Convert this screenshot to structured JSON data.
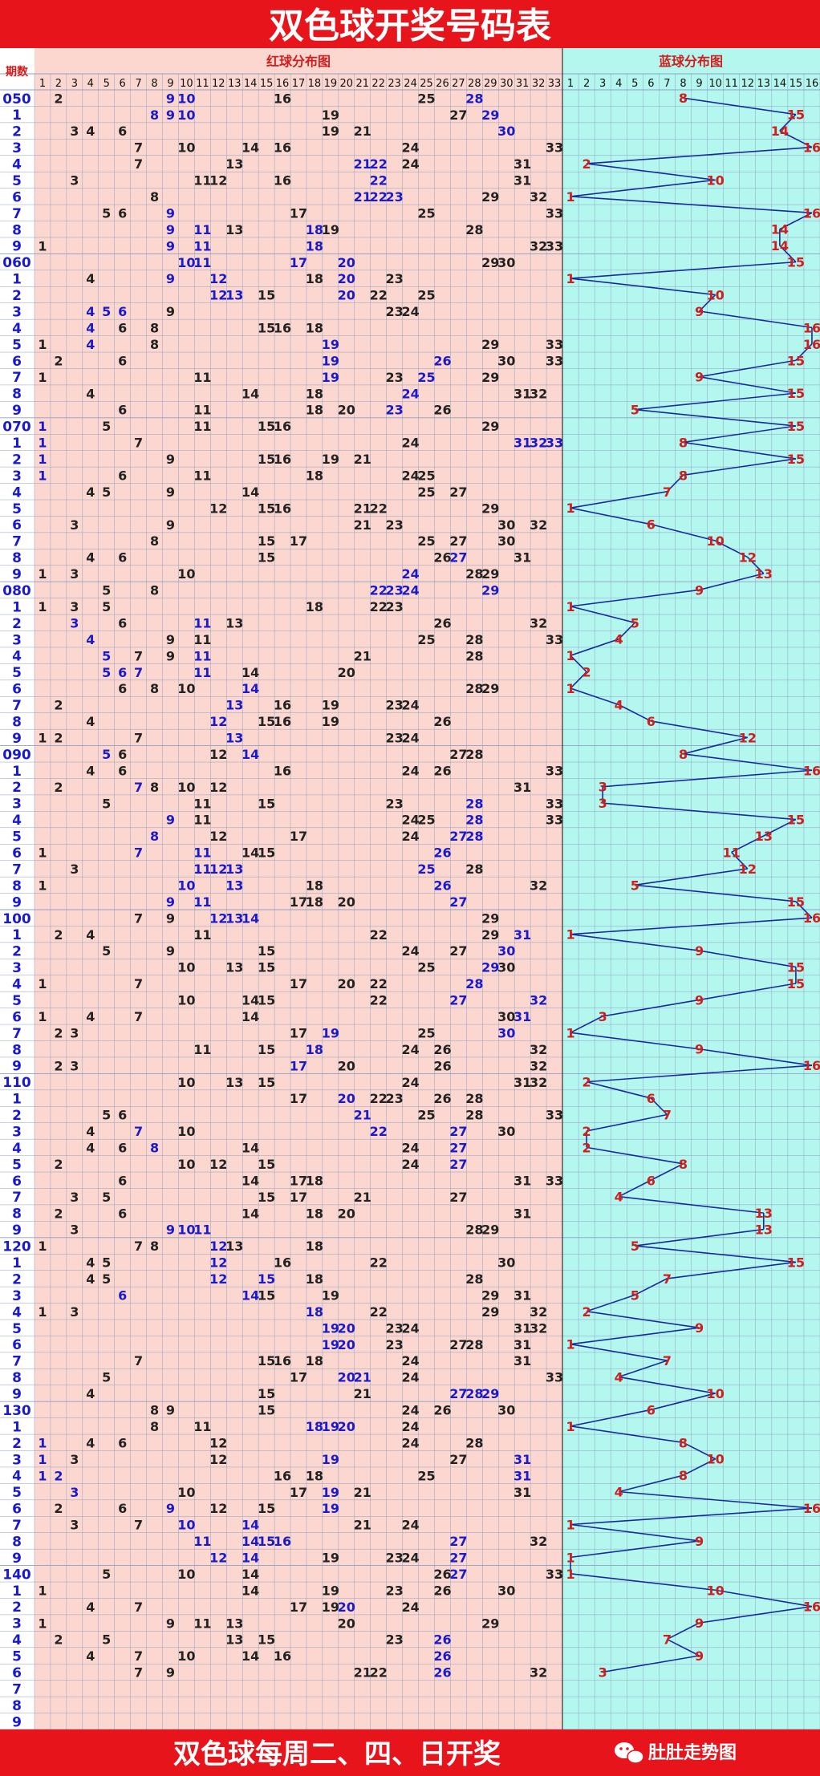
{
  "header": {
    "title": "双色球开奖号码表"
  },
  "labels": {
    "period": "期数",
    "red_section": "红球分布图",
    "blue_section": "蓝球分布图"
  },
  "footer": {
    "text": "双色球每周二、四、日开奖",
    "brand": "肚肚走势图"
  },
  "colors": {
    "title_bar": "#e8141c",
    "red_area": "#fcd7cf",
    "blue_area": "#b3f7ef",
    "grid": "#8fa0c4",
    "blue_line": "#1a2a9a",
    "number_dark": "#222222",
    "number_blue": "#1a1acc",
    "number_red": "#d21d1d"
  },
  "chart_data": {
    "type": "table",
    "red_columns": [
      "1",
      "2",
      "3",
      "4",
      "5",
      "6",
      "7",
      "8",
      "9",
      "10",
      "11",
      "12",
      "13",
      "14",
      "15",
      "16",
      "17",
      "18",
      "19",
      "20",
      "21",
      "22",
      "23",
      "24",
      "25",
      "26",
      "27",
      "28",
      "29",
      "30",
      "31",
      "32",
      "33"
    ],
    "blue_columns": [
      "1",
      "2",
      "3",
      "4",
      "5",
      "6",
      "7",
      "8",
      "9",
      "10",
      "11",
      "12",
      "13",
      "14",
      "15",
      "16"
    ],
    "period_labels": [
      "050",
      "1",
      "2",
      "3",
      "4",
      "5",
      "6",
      "7",
      "8",
      "9",
      "060",
      "1",
      "2",
      "3",
      "4",
      "5",
      "6",
      "7",
      "8",
      "9",
      "070",
      "1",
      "2",
      "3",
      "4",
      "5",
      "6",
      "7",
      "8",
      "9",
      "080",
      "1",
      "2",
      "3",
      "4",
      "5",
      "6",
      "7",
      "8",
      "9",
      "090",
      "1",
      "2",
      "3",
      "4",
      "5",
      "6",
      "7",
      "8",
      "9",
      "100",
      "1",
      "2",
      "3",
      "4",
      "5",
      "6",
      "7",
      "8",
      "9",
      "110",
      "1",
      "2",
      "3",
      "4",
      "5",
      "6",
      "7",
      "8",
      "9",
      "120",
      "1",
      "2",
      "3",
      "4",
      "5",
      "6",
      "7",
      "8",
      "9",
      "130",
      "1",
      "2",
      "3",
      "4",
      "5",
      "6",
      "7",
      "8",
      "9",
      "140",
      "1",
      "2",
      "3",
      "4",
      "5",
      "6",
      "7",
      "8",
      "9"
    ],
    "draws": [
      {
        "red": [
          2,
          9,
          10,
          16,
          25,
          28
        ],
        "blue": 8
      },
      {
        "red": [
          8,
          9,
          10,
          19,
          27,
          29
        ],
        "blue": 15
      },
      {
        "red": [
          3,
          4,
          6,
          19,
          21,
          30
        ],
        "blue": 14
      },
      {
        "red": [
          7,
          10,
          14,
          16,
          24,
          33
        ],
        "blue": 16
      },
      {
        "red": [
          7,
          13,
          21,
          22,
          24,
          31
        ],
        "blue": 2
      },
      {
        "red": [
          3,
          11,
          12,
          16,
          22,
          31
        ],
        "blue": 10
      },
      {
        "red": [
          8,
          21,
          22,
          23,
          29,
          32
        ],
        "blue": 1
      },
      {
        "red": [
          5,
          6,
          9,
          17,
          25,
          33
        ],
        "blue": 16
      },
      {
        "red": [
          9,
          11,
          13,
          18,
          19,
          28
        ],
        "blue": 14
      },
      {
        "red": [
          1,
          9,
          11,
          18,
          32,
          33
        ],
        "blue": 14
      },
      {
        "red": [
          10,
          11,
          17,
          20,
          29,
          30
        ],
        "blue": 15
      },
      {
        "red": [
          4,
          9,
          12,
          18,
          20,
          23
        ],
        "blue": 1
      },
      {
        "red": [
          12,
          13,
          15,
          20,
          22,
          25
        ],
        "blue": 10
      },
      {
        "red": [
          4,
          5,
          6,
          9,
          23,
          24
        ],
        "blue": 9
      },
      {
        "red": [
          4,
          6,
          8,
          15,
          16,
          18
        ],
        "blue": 16
      },
      {
        "red": [
          1,
          4,
          8,
          19,
          29,
          33
        ],
        "blue": 16
      },
      {
        "red": [
          2,
          6,
          19,
          26,
          30,
          33
        ],
        "blue": 15
      },
      {
        "red": [
          1,
          11,
          19,
          23,
          25,
          29
        ],
        "blue": 9
      },
      {
        "red": [
          4,
          14,
          18,
          24,
          31,
          32
        ],
        "blue": 15
      },
      {
        "red": [
          6,
          11,
          18,
          20,
          23,
          26
        ],
        "blue": 5
      },
      {
        "red": [
          1,
          5,
          11,
          15,
          16,
          29
        ],
        "blue": 15
      },
      {
        "red": [
          1,
          7,
          24,
          31,
          32,
          33
        ],
        "blue": 8
      },
      {
        "red": [
          1,
          9,
          15,
          16,
          19,
          21
        ],
        "blue": 15
      },
      {
        "red": [
          1,
          6,
          11,
          18,
          24,
          25
        ],
        "blue": 8
      },
      {
        "red": [
          4,
          5,
          9,
          14,
          25,
          27
        ],
        "blue": 7
      },
      {
        "red": [
          12,
          15,
          16,
          21,
          22,
          29
        ],
        "blue": 1
      },
      {
        "red": [
          3,
          9,
          21,
          23,
          30,
          32
        ],
        "blue": 6
      },
      {
        "red": [
          8,
          15,
          17,
          25,
          27,
          30
        ],
        "blue": 10
      },
      {
        "red": [
          4,
          6,
          15,
          26,
          27,
          31
        ],
        "blue": 12
      },
      {
        "red": [
          1,
          3,
          10,
          24,
          28,
          29
        ],
        "blue": 13
      },
      {
        "red": [
          5,
          8,
          22,
          23,
          24,
          29
        ],
        "blue": 9
      },
      {
        "red": [
          1,
          3,
          5,
          18,
          22,
          23
        ],
        "blue": 1
      },
      {
        "red": [
          3,
          6,
          11,
          13,
          26,
          32
        ],
        "blue": 5
      },
      {
        "red": [
          4,
          9,
          11,
          25,
          28,
          33
        ],
        "blue": 4
      },
      {
        "red": [
          5,
          7,
          9,
          11,
          21,
          28
        ],
        "blue": 1
      },
      {
        "red": [
          5,
          6,
          7,
          11,
          14,
          20
        ],
        "blue": 2
      },
      {
        "red": [
          6,
          8,
          10,
          14,
          28,
          29
        ],
        "blue": 1
      },
      {
        "red": [
          2,
          13,
          16,
          19,
          23,
          24
        ],
        "blue": 4
      },
      {
        "red": [
          4,
          12,
          15,
          16,
          19,
          26
        ],
        "blue": 6
      },
      {
        "red": [
          1,
          2,
          7,
          13,
          23,
          24
        ],
        "blue": 12
      },
      {
        "red": [
          5,
          6,
          12,
          14,
          27,
          28
        ],
        "blue": 8
      },
      {
        "red": [
          4,
          6,
          16,
          24,
          26,
          33
        ],
        "blue": 16
      },
      {
        "red": [
          2,
          7,
          8,
          10,
          12,
          31
        ],
        "blue": 3
      },
      {
        "red": [
          5,
          11,
          15,
          23,
          28,
          33
        ],
        "blue": 3
      },
      {
        "red": [
          9,
          11,
          24,
          25,
          28,
          33
        ],
        "blue": 15
      },
      {
        "red": [
          8,
          12,
          17,
          24,
          27,
          28
        ],
        "blue": 13
      },
      {
        "red": [
          1,
          7,
          11,
          14,
          15,
          26
        ],
        "blue": 11
      },
      {
        "red": [
          3,
          11,
          12,
          13,
          25,
          28
        ],
        "blue": 12
      },
      {
        "red": [
          1,
          10,
          13,
          18,
          26,
          32
        ],
        "blue": 5
      },
      {
        "red": [
          9,
          11,
          17,
          18,
          20,
          27
        ],
        "blue": 15
      },
      {
        "red": [
          7,
          9,
          12,
          13,
          14,
          29
        ],
        "blue": 16
      },
      {
        "red": [
          2,
          4,
          11,
          22,
          29,
          31
        ],
        "blue": 1
      },
      {
        "red": [
          5,
          9,
          15,
          24,
          27,
          30
        ],
        "blue": 9
      },
      {
        "red": [
          10,
          13,
          15,
          25,
          29,
          30
        ],
        "blue": 15
      },
      {
        "red": [
          1,
          7,
          17,
          20,
          22,
          28
        ],
        "blue": 15
      },
      {
        "red": [
          10,
          14,
          15,
          22,
          27,
          32
        ],
        "blue": 9
      },
      {
        "red": [
          1,
          4,
          7,
          14,
          30,
          31
        ],
        "blue": 3
      },
      {
        "red": [
          2,
          3,
          17,
          19,
          25,
          30
        ],
        "blue": 1
      },
      {
        "red": [
          11,
          15,
          18,
          24,
          26,
          32
        ],
        "blue": 9
      },
      {
        "red": [
          2,
          3,
          17,
          20,
          26,
          32
        ],
        "blue": 16
      },
      {
        "red": [
          10,
          13,
          15,
          24,
          31,
          32
        ],
        "blue": 2
      },
      {
        "red": [
          17,
          20,
          22,
          23,
          26,
          28
        ],
        "blue": 6
      },
      {
        "red": [
          5,
          6,
          21,
          25,
          28,
          33
        ],
        "blue": 7
      },
      {
        "red": [
          4,
          7,
          10,
          22,
          27,
          30
        ],
        "blue": 2
      },
      {
        "red": [
          4,
          6,
          8,
          14,
          24,
          27
        ],
        "blue": 2
      },
      {
        "red": [
          2,
          10,
          12,
          15,
          24,
          27
        ],
        "blue": 8
      },
      {
        "red": [
          6,
          14,
          17,
          18,
          31,
          33
        ],
        "blue": 6
      },
      {
        "red": [
          3,
          5,
          15,
          17,
          21,
          27
        ],
        "blue": 4
      },
      {
        "red": [
          2,
          6,
          14,
          18,
          20,
          31
        ],
        "blue": 13
      },
      {
        "red": [
          3,
          9,
          10,
          11,
          28,
          29
        ],
        "blue": 13
      },
      {
        "red": [
          1,
          7,
          8,
          12,
          13,
          18
        ],
        "blue": 5
      },
      {
        "red": [
          4,
          5,
          12,
          16,
          22,
          30
        ],
        "blue": 15
      },
      {
        "red": [
          4,
          5,
          12,
          15,
          18,
          28
        ],
        "blue": 7
      },
      {
        "red": [
          6,
          14,
          15,
          19,
          29,
          31
        ],
        "blue": 5
      },
      {
        "red": [
          1,
          3,
          18,
          22,
          29,
          32
        ],
        "blue": 2
      },
      {
        "red": [
          19,
          20,
          23,
          24,
          31,
          32
        ],
        "blue": 9
      },
      {
        "red": [
          19,
          20,
          23,
          27,
          28,
          31
        ],
        "blue": 1
      },
      {
        "red": [
          7,
          15,
          16,
          18,
          24,
          31
        ],
        "blue": 7
      },
      {
        "red": [
          5,
          17,
          20,
          21,
          24,
          33
        ],
        "blue": 4
      },
      {
        "red": [
          4,
          15,
          21,
          27,
          28,
          29
        ],
        "blue": 10
      },
      {
        "red": [
          8,
          9,
          15,
          24,
          26,
          30
        ],
        "blue": 6
      },
      {
        "red": [
          8,
          11,
          18,
          19,
          20,
          24
        ],
        "blue": 1
      },
      {
        "red": [
          1,
          4,
          6,
          12,
          24,
          28
        ],
        "blue": 8
      },
      {
        "red": [
          1,
          3,
          12,
          19,
          27,
          31
        ],
        "blue": 10
      },
      {
        "red": [
          1,
          2,
          16,
          18,
          25,
          31
        ],
        "blue": 8
      },
      {
        "red": [
          3,
          10,
          17,
          19,
          21,
          31
        ],
        "blue": 4
      },
      {
        "red": [
          2,
          6,
          9,
          12,
          15,
          19
        ],
        "blue": 16
      },
      {
        "red": [
          3,
          7,
          10,
          14,
          21,
          24
        ],
        "blue": 1
      },
      {
        "red": [
          11,
          14,
          15,
          16,
          27,
          32
        ],
        "blue": 9
      },
      {
        "red": [
          12,
          14,
          19,
          23,
          24,
          27
        ],
        "blue": 1
      },
      {
        "red": [
          5,
          10,
          14,
          26,
          27,
          33
        ],
        "blue": 1
      },
      {
        "red": [
          1,
          14,
          19,
          23,
          26,
          30
        ],
        "blue": 10
      },
      {
        "red": [
          4,
          7,
          17,
          19,
          20,
          24
        ],
        "blue": 16
      },
      {
        "red": [
          1,
          9,
          11,
          13,
          20,
          29
        ],
        "blue": 9
      },
      {
        "red": [
          2,
          5,
          13,
          15,
          23,
          26
        ],
        "blue": 7
      },
      {
        "red": [
          4,
          7,
          10,
          14,
          16,
          26
        ],
        "blue": 9
      },
      {
        "red": [
          7,
          9,
          21,
          22,
          26,
          32
        ],
        "blue": 3
      },
      {
        "red": [],
        "blue": null
      },
      {
        "red": [],
        "blue": null
      },
      {
        "red": [],
        "blue": null
      }
    ],
    "highlighted_red": [
      [
        9,
        10,
        28
      ],
      [
        8,
        9,
        10,
        29
      ],
      [
        30
      ],
      [],
      [
        21,
        22
      ],
      [
        22
      ],
      [
        21,
        22,
        23
      ],
      [
        9
      ],
      [
        9,
        11,
        18
      ],
      [
        9,
        11,
        18
      ],
      [
        10,
        11,
        17,
        20
      ],
      [
        9,
        12,
        20
      ],
      [
        12,
        13,
        20
      ],
      [
        4,
        5,
        6
      ],
      [
        4
      ],
      [
        4,
        19
      ],
      [
        19,
        26
      ],
      [
        19,
        25
      ],
      [
        24
      ],
      [
        23
      ],
      [
        1
      ],
      [
        1,
        31,
        32,
        33
      ],
      [
        1
      ],
      [
        1
      ],
      [],
      [],
      [],
      [],
      [
        27
      ],
      [
        24
      ],
      [
        22,
        23,
        24,
        29
      ],
      [],
      [
        3,
        11
      ],
      [
        4
      ],
      [
        5,
        11
      ],
      [
        5,
        6,
        7,
        11
      ],
      [
        14
      ],
      [
        13
      ],
      [
        12,
        14
      ],
      [
        13
      ],
      [
        5,
        14
      ],
      [],
      [
        7
      ],
      [
        28
      ],
      [
        9,
        28
      ],
      [
        8,
        27,
        28
      ],
      [
        7,
        11,
        26
      ],
      [
        11,
        12,
        13,
        25
      ],
      [
        10,
        13,
        26
      ],
      [
        9,
        11,
        27
      ],
      [
        12,
        13,
        14
      ],
      [
        31
      ],
      [
        30
      ],
      [
        29
      ],
      [
        28
      ],
      [
        27,
        32
      ],
      [
        31
      ],
      [
        19,
        30
      ],
      [
        18
      ],
      [
        17
      ],
      [],
      [
        20,
        21
      ],
      [
        21
      ],
      [
        7,
        22,
        27
      ],
      [
        8,
        27
      ],
      [
        27
      ],
      [],
      [],
      [],
      [
        9,
        10,
        11
      ],
      [
        12
      ],
      [
        12
      ],
      [
        12,
        15,
        16
      ],
      [
        6,
        14
      ],
      [
        18
      ],
      [
        19,
        20
      ],
      [
        19,
        20
      ],
      [
        20
      ],
      [
        20,
        21
      ],
      [
        27,
        28,
        29
      ],
      [],
      [
        18,
        19,
        20
      ],
      [
        1
      ],
      [
        1,
        19,
        31
      ],
      [
        1,
        2,
        19,
        31
      ],
      [
        3,
        19
      ],
      [
        9,
        19
      ],
      [
        10,
        14
      ],
      [
        11,
        14,
        15,
        16,
        27
      ],
      [
        12,
        14,
        27
      ],
      [
        27
      ],
      [],
      [
        20
      ],
      [],
      [
        26
      ],
      [
        26
      ],
      [
        26
      ],
      [],
      [],
      []
    ]
  }
}
